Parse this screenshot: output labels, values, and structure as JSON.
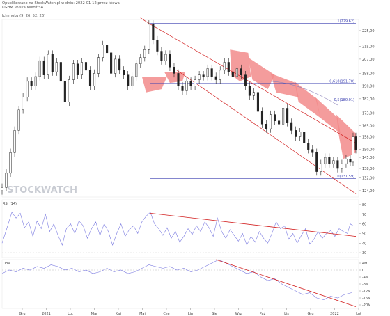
{
  "header": {
    "line1": "Opublikowano na StockWatch.pl w dniu: 2022-01-12 przez ktewa",
    "line2": "KGHM Polska Miedź SA",
    "indicator_label": "Ichimoku (9, 26, 52, 26)"
  },
  "watermark": "STOCKWATCH",
  "chart_data": [
    {
      "type": "line",
      "name": "price",
      "title": "KGHM Polska Miedź SA",
      "y_ticks": [
        "225,00",
        "215,00",
        "207,00",
        "198,00",
        "190,00",
        "182,00",
        "173,00",
        "165,00",
        "158,00",
        "150,00",
        "145,00",
        "138,00",
        "132,00",
        "124,00"
      ],
      "ylim": [
        120,
        232
      ],
      "x_tick_labels": [
        "Gru",
        "2021",
        "Lut",
        "Mar",
        "Kwi",
        "Maj",
        "Cze",
        "Lip",
        "Sie",
        "Wrz",
        "Paź",
        "Lis",
        "Gru",
        "2022",
        "Lut"
      ],
      "price_series": [
        {
          "x": 0,
          "y": 126
        },
        {
          "x": 6,
          "y": 135
        },
        {
          "x": 12,
          "y": 148
        },
        {
          "x": 18,
          "y": 162
        },
        {
          "x": 24,
          "y": 175
        },
        {
          "x": 30,
          "y": 183
        },
        {
          "x": 36,
          "y": 193
        },
        {
          "x": 42,
          "y": 190
        },
        {
          "x": 48,
          "y": 196
        },
        {
          "x": 54,
          "y": 206
        },
        {
          "x": 60,
          "y": 197
        },
        {
          "x": 66,
          "y": 210
        },
        {
          "x": 72,
          "y": 199
        },
        {
          "x": 78,
          "y": 205
        },
        {
          "x": 84,
          "y": 193
        },
        {
          "x": 90,
          "y": 180
        },
        {
          "x": 96,
          "y": 194
        },
        {
          "x": 102,
          "y": 204
        },
        {
          "x": 108,
          "y": 197
        },
        {
          "x": 114,
          "y": 205
        },
        {
          "x": 120,
          "y": 200
        },
        {
          "x": 126,
          "y": 190
        },
        {
          "x": 132,
          "y": 198
        },
        {
          "x": 138,
          "y": 208
        },
        {
          "x": 144,
          "y": 216
        },
        {
          "x": 150,
          "y": 211
        },
        {
          "x": 156,
          "y": 198
        },
        {
          "x": 162,
          "y": 207
        },
        {
          "x": 168,
          "y": 200
        },
        {
          "x": 174,
          "y": 197
        },
        {
          "x": 180,
          "y": 190
        },
        {
          "x": 186,
          "y": 196
        },
        {
          "x": 192,
          "y": 204
        },
        {
          "x": 198,
          "y": 208
        },
        {
          "x": 204,
          "y": 213
        },
        {
          "x": 210,
          "y": 229
        },
        {
          "x": 216,
          "y": 219
        },
        {
          "x": 222,
          "y": 212
        },
        {
          "x": 228,
          "y": 206
        },
        {
          "x": 234,
          "y": 210
        },
        {
          "x": 240,
          "y": 202
        },
        {
          "x": 246,
          "y": 198
        },
        {
          "x": 252,
          "y": 190
        },
        {
          "x": 258,
          "y": 187
        },
        {
          "x": 264,
          "y": 193
        },
        {
          "x": 270,
          "y": 190
        },
        {
          "x": 276,
          "y": 194
        },
        {
          "x": 282,
          "y": 197
        },
        {
          "x": 288,
          "y": 196
        },
        {
          "x": 294,
          "y": 201
        },
        {
          "x": 300,
          "y": 196
        },
        {
          "x": 306,
          "y": 194
        },
        {
          "x": 312,
          "y": 200
        },
        {
          "x": 318,
          "y": 205
        },
        {
          "x": 324,
          "y": 199
        },
        {
          "x": 330,
          "y": 196
        },
        {
          "x": 336,
          "y": 201
        },
        {
          "x": 342,
          "y": 197
        },
        {
          "x": 348,
          "y": 190
        },
        {
          "x": 354,
          "y": 184
        },
        {
          "x": 360,
          "y": 186
        },
        {
          "x": 366,
          "y": 174
        },
        {
          "x": 372,
          "y": 166
        },
        {
          "x": 378,
          "y": 163
        },
        {
          "x": 384,
          "y": 172
        },
        {
          "x": 390,
          "y": 168
        },
        {
          "x": 396,
          "y": 166
        },
        {
          "x": 402,
          "y": 176
        },
        {
          "x": 408,
          "y": 167
        },
        {
          "x": 414,
          "y": 162
        },
        {
          "x": 420,
          "y": 158
        },
        {
          "x": 426,
          "y": 161
        },
        {
          "x": 432,
          "y": 154
        },
        {
          "x": 438,
          "y": 150
        },
        {
          "x": 444,
          "y": 148
        },
        {
          "x": 450,
          "y": 136
        },
        {
          "x": 456,
          "y": 141
        },
        {
          "x": 462,
          "y": 145
        },
        {
          "x": 468,
          "y": 141
        },
        {
          "x": 474,
          "y": 143
        },
        {
          "x": 480,
          "y": 138
        },
        {
          "x": 486,
          "y": 141
        },
        {
          "x": 492,
          "y": 144
        },
        {
          "x": 498,
          "y": 142
        },
        {
          "x": 502,
          "y": 158
        },
        {
          "x": 506,
          "y": 150
        }
      ],
      "fib_levels": [
        {
          "label": "1(229,62)",
          "value": 229.62
        },
        {
          "label": "0,618(191,70)",
          "value": 191.7
        },
        {
          "label": "0,5(180,01)",
          "value": 180.01
        },
        {
          "label": "0(131,59)",
          "value": 131.59
        }
      ]
    },
    {
      "type": "line",
      "name": "RSI (14)",
      "title": "RSI (14)",
      "y_ticks": [
        "80",
        "70",
        "60",
        "50",
        "40",
        "30"
      ],
      "ylim": [
        25,
        85
      ],
      "series": [
        {
          "x": 0,
          "y": 40
        },
        {
          "x": 8,
          "y": 58
        },
        {
          "x": 14,
          "y": 72
        },
        {
          "x": 20,
          "y": 66
        },
        {
          "x": 26,
          "y": 71
        },
        {
          "x": 32,
          "y": 56
        },
        {
          "x": 38,
          "y": 62
        },
        {
          "x": 44,
          "y": 47
        },
        {
          "x": 50,
          "y": 63
        },
        {
          "x": 56,
          "y": 55
        },
        {
          "x": 62,
          "y": 70
        },
        {
          "x": 68,
          "y": 52
        },
        {
          "x": 74,
          "y": 60
        },
        {
          "x": 80,
          "y": 48
        },
        {
          "x": 86,
          "y": 38
        },
        {
          "x": 92,
          "y": 55
        },
        {
          "x": 98,
          "y": 60
        },
        {
          "x": 104,
          "y": 50
        },
        {
          "x": 110,
          "y": 63
        },
        {
          "x": 116,
          "y": 58
        },
        {
          "x": 122,
          "y": 45
        },
        {
          "x": 128,
          "y": 55
        },
        {
          "x": 134,
          "y": 62
        },
        {
          "x": 140,
          "y": 48
        },
        {
          "x": 146,
          "y": 60
        },
        {
          "x": 152,
          "y": 52
        },
        {
          "x": 158,
          "y": 38
        },
        {
          "x": 164,
          "y": 50
        },
        {
          "x": 170,
          "y": 60
        },
        {
          "x": 176,
          "y": 47
        },
        {
          "x": 182,
          "y": 54
        },
        {
          "x": 188,
          "y": 58
        },
        {
          "x": 194,
          "y": 50
        },
        {
          "x": 200,
          "y": 62
        },
        {
          "x": 206,
          "y": 68
        },
        {
          "x": 212,
          "y": 72
        },
        {
          "x": 218,
          "y": 60
        },
        {
          "x": 224,
          "y": 55
        },
        {
          "x": 230,
          "y": 48
        },
        {
          "x": 236,
          "y": 56
        },
        {
          "x": 242,
          "y": 45
        },
        {
          "x": 248,
          "y": 52
        },
        {
          "x": 254,
          "y": 41
        },
        {
          "x": 260,
          "y": 47
        },
        {
          "x": 266,
          "y": 55
        },
        {
          "x": 272,
          "y": 49
        },
        {
          "x": 278,
          "y": 58
        },
        {
          "x": 284,
          "y": 52
        },
        {
          "x": 290,
          "y": 62
        },
        {
          "x": 296,
          "y": 56
        },
        {
          "x": 302,
          "y": 47
        },
        {
          "x": 308,
          "y": 66
        },
        {
          "x": 314,
          "y": 52
        },
        {
          "x": 320,
          "y": 45
        },
        {
          "x": 326,
          "y": 54
        },
        {
          "x": 332,
          "y": 48
        },
        {
          "x": 338,
          "y": 42
        },
        {
          "x": 344,
          "y": 50
        },
        {
          "x": 350,
          "y": 38
        },
        {
          "x": 356,
          "y": 47
        },
        {
          "x": 362,
          "y": 41
        },
        {
          "x": 368,
          "y": 52
        },
        {
          "x": 374,
          "y": 45
        },
        {
          "x": 380,
          "y": 40
        },
        {
          "x": 386,
          "y": 50
        },
        {
          "x": 392,
          "y": 62
        },
        {
          "x": 398,
          "y": 55
        },
        {
          "x": 404,
          "y": 58
        },
        {
          "x": 410,
          "y": 44
        },
        {
          "x": 416,
          "y": 50
        },
        {
          "x": 422,
          "y": 40
        },
        {
          "x": 428,
          "y": 48
        },
        {
          "x": 434,
          "y": 55
        },
        {
          "x": 440,
          "y": 39
        },
        {
          "x": 446,
          "y": 44
        },
        {
          "x": 452,
          "y": 52
        },
        {
          "x": 458,
          "y": 45
        },
        {
          "x": 464,
          "y": 50
        },
        {
          "x": 470,
          "y": 53
        },
        {
          "x": 476,
          "y": 47
        },
        {
          "x": 482,
          "y": 55
        },
        {
          "x": 488,
          "y": 52
        },
        {
          "x": 494,
          "y": 50
        },
        {
          "x": 498,
          "y": 60
        },
        {
          "x": 502,
          "y": 58
        }
      ]
    },
    {
      "type": "line",
      "name": "OBV",
      "title": "OBV",
      "y_ticks": [
        "4M",
        "0",
        "-4M",
        "-8M",
        "-12M",
        "-16M",
        "-20M"
      ],
      "ylim": [
        -22,
        6
      ],
      "series": [
        {
          "x": 0,
          "y": -2
        },
        {
          "x": 10,
          "y": 0
        },
        {
          "x": 20,
          "y": -1
        },
        {
          "x": 30,
          "y": 1
        },
        {
          "x": 40,
          "y": 0
        },
        {
          "x": 50,
          "y": 2
        },
        {
          "x": 60,
          "y": 1
        },
        {
          "x": 70,
          "y": 3
        },
        {
          "x": 80,
          "y": 2
        },
        {
          "x": 90,
          "y": 0
        },
        {
          "x": 100,
          "y": 1
        },
        {
          "x": 110,
          "y": -1
        },
        {
          "x": 120,
          "y": 0
        },
        {
          "x": 130,
          "y": -2
        },
        {
          "x": 140,
          "y": -1
        },
        {
          "x": 150,
          "y": 1
        },
        {
          "x": 160,
          "y": -1
        },
        {
          "x": 170,
          "y": 0
        },
        {
          "x": 180,
          "y": -2
        },
        {
          "x": 190,
          "y": -1
        },
        {
          "x": 200,
          "y": 1
        },
        {
          "x": 210,
          "y": 3
        },
        {
          "x": 220,
          "y": 2
        },
        {
          "x": 230,
          "y": 1
        },
        {
          "x": 240,
          "y": 2
        },
        {
          "x": 250,
          "y": 0
        },
        {
          "x": 260,
          "y": 1
        },
        {
          "x": 270,
          "y": -1
        },
        {
          "x": 280,
          "y": 0
        },
        {
          "x": 290,
          "y": 2
        },
        {
          "x": 300,
          "y": 4
        },
        {
          "x": 310,
          "y": 6
        },
        {
          "x": 320,
          "y": 4
        },
        {
          "x": 330,
          "y": 2
        },
        {
          "x": 340,
          "y": 0
        },
        {
          "x": 350,
          "y": -2
        },
        {
          "x": 360,
          "y": -1
        },
        {
          "x": 370,
          "y": -4
        },
        {
          "x": 380,
          "y": -6
        },
        {
          "x": 390,
          "y": -5
        },
        {
          "x": 400,
          "y": -8
        },
        {
          "x": 410,
          "y": -10
        },
        {
          "x": 420,
          "y": -12
        },
        {
          "x": 430,
          "y": -14
        },
        {
          "x": 440,
          "y": -13
        },
        {
          "x": 450,
          "y": -16
        },
        {
          "x": 460,
          "y": -17
        },
        {
          "x": 470,
          "y": -15
        },
        {
          "x": 480,
          "y": -16
        },
        {
          "x": 490,
          "y": -14
        },
        {
          "x": 500,
          "y": -13
        }
      ]
    }
  ],
  "colors": {
    "candle": "#222222",
    "cloud": "#f28b8b",
    "trendline": "#d21f1f",
    "fib": "#3a3fb0",
    "indicator_line": "#7a7ae0",
    "ma_line": "#8a7fb8",
    "grid": "#b8b8b8",
    "watermark": "#c9ccd3"
  }
}
